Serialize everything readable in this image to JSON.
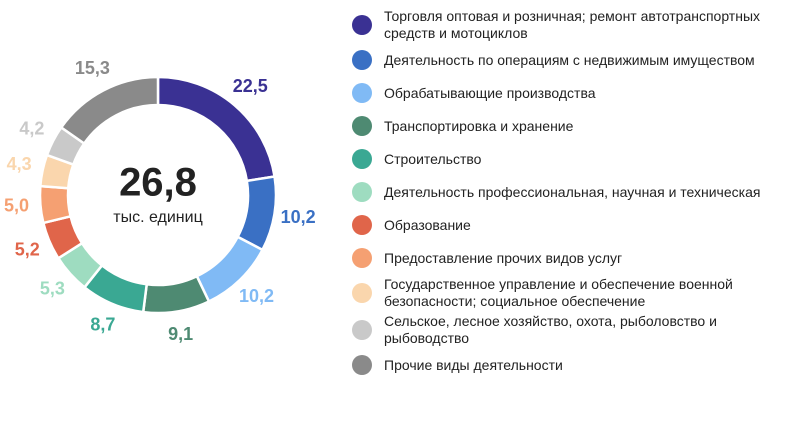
{
  "chart_data": {
    "type": "pie",
    "donut": true,
    "center_text": "26,8",
    "center_subtext": "тыс. единиц",
    "categories": [
      "Торговля оптовая и розничная; ремонт автотранспортных средств и мотоциклов",
      "Деятельность по операциям с недвижимым имуществом",
      "Обрабатывающие производства",
      "Транспортировка и хранение",
      "Строительство",
      "Деятельность профессиональная, научная и техническая",
      "Образование",
      "Предоставление прочих видов услуг",
      "Государственное управление и обеспечение военной безопасности; социальное обеспечение",
      "Сельское, лесное хозяйство, охота, рыболовство и рыбоводство",
      "Прочие виды деятельности"
    ],
    "values": [
      22.5,
      10.2,
      10.2,
      9.1,
      8.7,
      5.3,
      5.2,
      5.0,
      4.3,
      4.2,
      15.3
    ],
    "value_labels": [
      "22,5",
      "10,2",
      "10,2",
      "9,1",
      "8,7",
      "5,3",
      "5,2",
      "5,0",
      "4,3",
      "4,2",
      "15,3"
    ],
    "colors": [
      "#3a3193",
      "#3a70c4",
      "#80baf5",
      "#4e8a72",
      "#3aa893",
      "#9edcc0",
      "#e0654a",
      "#f5a072",
      "#fad6ad",
      "#c9c9c9",
      "#8a8a8a"
    ],
    "legend": "right"
  }
}
